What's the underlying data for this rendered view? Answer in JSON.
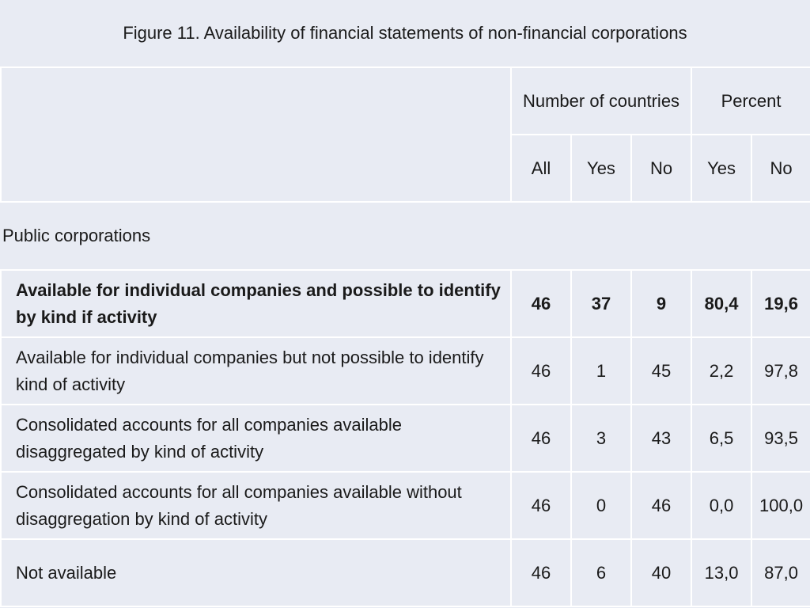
{
  "title": "Figure 11. Availability of financial statements of non-financial corporations",
  "headers": {
    "number_of_countries": "Number of countries",
    "percent": "Percent",
    "all": "All",
    "yes_count": "Yes",
    "no_count": "No",
    "yes_pct": "Yes",
    "no_pct": "No"
  },
  "section": "Public corporations",
  "chart_data": {
    "type": "table",
    "title": "Figure 11. Availability of financial statements of non-financial corporations",
    "columns": [
      "All",
      "Yes",
      "No",
      "Yes",
      "No"
    ],
    "column_groups": [
      {
        "name": "Number of countries",
        "columns": [
          "All",
          "Yes",
          "No"
        ]
      },
      {
        "name": "Percent",
        "columns": [
          "Yes",
          "No"
        ]
      }
    ],
    "rows": [
      {
        "label": "Available for individual companies and possible to identify by kind if activity",
        "bold": true,
        "values": [
          "46",
          "37",
          "9",
          "80,4",
          "19,6"
        ]
      },
      {
        "label": "Available for individual companies but not possible to identify kind of activity",
        "bold": false,
        "values": [
          "46",
          "1",
          "45",
          "2,2",
          "97,8"
        ]
      },
      {
        "label": "Consolidated accounts for all companies available disaggregated by kind of activity",
        "bold": false,
        "values": [
          "46",
          "3",
          "43",
          "6,5",
          "93,5"
        ]
      },
      {
        "label": "Consolidated accounts for all companies available without disaggregation by kind of activity",
        "bold": false,
        "values": [
          "46",
          "0",
          "46",
          "0,0",
          "100,0"
        ]
      },
      {
        "label": "Not available",
        "bold": false,
        "values": [
          "46",
          "6",
          "40",
          "13,0",
          "87,0"
        ]
      }
    ]
  }
}
